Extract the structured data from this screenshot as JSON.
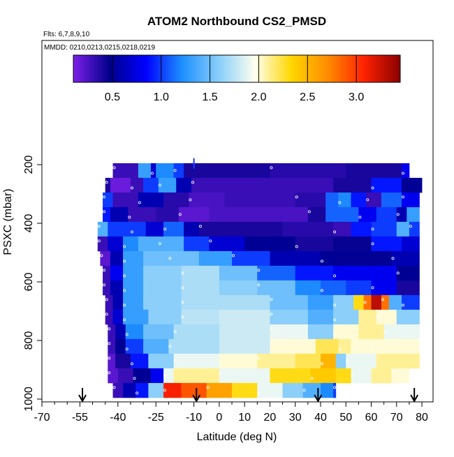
{
  "chart_data": {
    "type": "heatmap",
    "title": "ATOM2 Northbound CS2_PMSD",
    "flights_label": "Flts: 6,7,8,9,10",
    "dates_label": "MMDD: 0210,0213,0215,0218,0219",
    "xlabel": "Latitude (deg N)",
    "ylabel": "PSXC (mbar)",
    "xlim": [
      -70,
      85
    ],
    "ylim": [
      1010,
      100
    ],
    "y_reversed": true,
    "x_ticks": [
      -70,
      -55,
      -40,
      -25,
      -10,
      0,
      10,
      20,
      30,
      40,
      50,
      60,
      70,
      80
    ],
    "x_tick_labels": [
      "-70",
      "-55",
      "-40",
      "-25",
      "-10",
      "0",
      "10",
      "20",
      "30",
      "40",
      "50",
      "60",
      "70",
      "80"
    ],
    "x_minor_ticks": [
      -65,
      -60,
      -50,
      -45,
      -35,
      -30,
      -20,
      -15,
      -5,
      5,
      15,
      25,
      35,
      45,
      55,
      65,
      75
    ],
    "y_ticks": [
      200,
      400,
      600,
      800,
      1000
    ],
    "y_tick_labels": [
      "200",
      "400",
      "600",
      "800",
      "1000"
    ],
    "colorbar": {
      "range": [
        0.1,
        3.45
      ],
      "ticks": [
        0.5,
        1.0,
        1.5,
        2.0,
        2.5,
        3.0
      ],
      "tick_labels": [
        "0.5",
        "1.0",
        "1.5",
        "2.0",
        "2.5",
        "3.0"
      ],
      "colors": [
        "#7b1fe8",
        "#00008b",
        "#0000ff",
        "#1e90ff",
        "#87cefa",
        "#fffff0",
        "#ffd700",
        "#ff8c00",
        "#ff2200",
        "#8b0000"
      ]
    },
    "arrows_latitude": [
      -54,
      -9,
      39,
      77
    ],
    "series_label": "CS2_PMSD",
    "grid": false,
    "pressure_bins": [
      220,
      270,
      320,
      370,
      420,
      470,
      520,
      570,
      620,
      670,
      720,
      770,
      820,
      870,
      920,
      970
    ],
    "cells": [
      {
        "p": 220,
        "segments": [
          [
            -42,
            -32,
            0.3
          ],
          [
            -32,
            -27,
            1.3
          ],
          [
            -27,
            -25,
            0.7
          ],
          [
            -25,
            -18,
            1.2
          ],
          [
            -18,
            -14,
            1.0
          ],
          [
            -14,
            20,
            0.4
          ],
          [
            20,
            50,
            0.35
          ],
          [
            50,
            72,
            0.4
          ],
          [
            72,
            75,
            0.8
          ]
        ]
      },
      {
        "p": 270,
        "segments": [
          [
            -45,
            -43,
            0.4
          ],
          [
            -43,
            -35,
            0.15
          ],
          [
            -35,
            -30,
            0.3
          ],
          [
            -30,
            -24,
            1.0
          ],
          [
            -24,
            -17,
            1.3
          ],
          [
            -17,
            -11,
            0.6
          ],
          [
            -11,
            45,
            0.3
          ],
          [
            45,
            60,
            0.4
          ],
          [
            60,
            72,
            0.9
          ],
          [
            72,
            80,
            0.5
          ]
        ]
      },
      {
        "p": 320,
        "segments": [
          [
            -46,
            -42,
            1.0
          ],
          [
            -42,
            -32,
            0.3
          ],
          [
            -32,
            -22,
            0.6
          ],
          [
            -22,
            -12,
            0.35
          ],
          [
            -12,
            2,
            0.25
          ],
          [
            2,
            30,
            0.3
          ],
          [
            30,
            42,
            0.35
          ],
          [
            42,
            47,
            1.1
          ],
          [
            47,
            52,
            1.2
          ],
          [
            52,
            58,
            0.9
          ],
          [
            58,
            64,
            0.3
          ],
          [
            64,
            72,
            1.1
          ],
          [
            72,
            79,
            0.8
          ]
        ]
      },
      {
        "p": 370,
        "segments": [
          [
            -46,
            -43,
            0.9
          ],
          [
            -43,
            -36,
            0.6
          ],
          [
            -36,
            -25,
            0.3
          ],
          [
            -25,
            -16,
            0.35
          ],
          [
            -16,
            -4,
            0.2
          ],
          [
            -4,
            35,
            0.25
          ],
          [
            35,
            42,
            0.4
          ],
          [
            42,
            55,
            1.1
          ],
          [
            55,
            62,
            0.8
          ],
          [
            62,
            70,
            1.0
          ],
          [
            70,
            74,
            0.6
          ],
          [
            74,
            79,
            1.3
          ]
        ]
      },
      {
        "p": 420,
        "segments": [
          [
            -48,
            -44,
            1.4
          ],
          [
            -44,
            -35,
            1.0
          ],
          [
            -35,
            -29,
            1.0
          ],
          [
            -29,
            -22,
            0.7
          ],
          [
            -22,
            -14,
            1.1
          ],
          [
            -14,
            -8,
            0.6
          ],
          [
            -8,
            25,
            0.4
          ],
          [
            25,
            45,
            0.35
          ],
          [
            45,
            52,
            0.3
          ],
          [
            52,
            60,
            0.9
          ],
          [
            60,
            70,
            1.0
          ],
          [
            70,
            75,
            1.4
          ],
          [
            75,
            79,
            1.0
          ]
        ]
      },
      {
        "p": 470,
        "segments": [
          [
            -48,
            -44,
            0.3
          ],
          [
            -44,
            -38,
            0.7
          ],
          [
            -38,
            -32,
            1.2
          ],
          [
            -32,
            -24,
            1.4
          ],
          [
            -24,
            -14,
            1.4
          ],
          [
            -14,
            -4,
            1.0
          ],
          [
            -4,
            10,
            0.7
          ],
          [
            10,
            30,
            0.5
          ],
          [
            30,
            45,
            0.4
          ],
          [
            45,
            60,
            0.45
          ],
          [
            60,
            72,
            0.9
          ],
          [
            72,
            79,
            0.7
          ]
        ]
      },
      {
        "p": 520,
        "segments": [
          [
            -47,
            -43,
            0.2
          ],
          [
            -43,
            -38,
            0.6
          ],
          [
            -38,
            -30,
            1.3
          ],
          [
            -30,
            -20,
            1.5
          ],
          [
            -20,
            -8,
            1.5
          ],
          [
            -8,
            5,
            1.3
          ],
          [
            5,
            20,
            1.0
          ],
          [
            20,
            40,
            0.6
          ],
          [
            40,
            55,
            0.5
          ],
          [
            55,
            68,
            0.5
          ],
          [
            68,
            79,
            0.6
          ]
        ]
      },
      {
        "p": 570,
        "segments": [
          [
            -46,
            -43,
            0.3
          ],
          [
            -43,
            -38,
            0.8
          ],
          [
            -38,
            -30,
            1.3
          ],
          [
            -30,
            -15,
            1.6
          ],
          [
            -15,
            0,
            1.7
          ],
          [
            0,
            15,
            1.5
          ],
          [
            15,
            30,
            1.1
          ],
          [
            30,
            45,
            0.9
          ],
          [
            45,
            60,
            0.8
          ],
          [
            60,
            70,
            0.8
          ],
          [
            70,
            79,
            0.5
          ]
        ]
      },
      {
        "p": 620,
        "segments": [
          [
            -46,
            -43,
            0.3
          ],
          [
            -43,
            -38,
            0.6
          ],
          [
            -38,
            -30,
            1.3
          ],
          [
            -30,
            -15,
            1.6
          ],
          [
            -15,
            0,
            1.7
          ],
          [
            0,
            15,
            1.6
          ],
          [
            15,
            30,
            1.5
          ],
          [
            30,
            40,
            1.2
          ],
          [
            40,
            50,
            1.1
          ],
          [
            50,
            60,
            1.0
          ],
          [
            60,
            70,
            0.8
          ],
          [
            70,
            79,
            0.4
          ]
        ]
      },
      {
        "p": 670,
        "segments": [
          [
            -45,
            -42,
            0.3
          ],
          [
            -42,
            -38,
            0.6
          ],
          [
            -38,
            -30,
            1.3
          ],
          [
            -30,
            -15,
            1.6
          ],
          [
            -15,
            0,
            1.7
          ],
          [
            0,
            20,
            1.7
          ],
          [
            20,
            35,
            1.5
          ],
          [
            35,
            45,
            1.3
          ],
          [
            45,
            53,
            1.6
          ],
          [
            53,
            57,
            2.3
          ],
          [
            57,
            60,
            2.8
          ],
          [
            60,
            64,
            3.3
          ],
          [
            64,
            67,
            2.8
          ],
          [
            67,
            72,
            1.4
          ],
          [
            72,
            79,
            1.0
          ]
        ]
      },
      {
        "p": 720,
        "segments": [
          [
            -45,
            -42,
            0.3
          ],
          [
            -42,
            -38,
            0.7
          ],
          [
            -38,
            -28,
            1.3
          ],
          [
            -28,
            -15,
            1.6
          ],
          [
            -15,
            0,
            1.75
          ],
          [
            0,
            20,
            1.8
          ],
          [
            20,
            35,
            1.6
          ],
          [
            35,
            45,
            1.4
          ],
          [
            45,
            55,
            1.6
          ],
          [
            55,
            62,
            2.1
          ],
          [
            62,
            70,
            2.0
          ],
          [
            70,
            79,
            1.6
          ]
        ]
      },
      {
        "p": 770,
        "segments": [
          [
            -44,
            -41,
            0.3
          ],
          [
            -41,
            -37,
            0.6
          ],
          [
            -37,
            -30,
            1.2
          ],
          [
            -30,
            -18,
            1.5
          ],
          [
            -18,
            0,
            1.7
          ],
          [
            0,
            20,
            1.8
          ],
          [
            20,
            35,
            1.9
          ],
          [
            35,
            45,
            1.6
          ],
          [
            45,
            55,
            2.0
          ],
          [
            55,
            65,
            2.1
          ],
          [
            65,
            79,
            1.9
          ]
        ]
      },
      {
        "p": 820,
        "segments": [
          [
            -44,
            -41,
            0.3
          ],
          [
            -41,
            -37,
            0.5
          ],
          [
            -37,
            -30,
            1.0
          ],
          [
            -30,
            -20,
            1.4
          ],
          [
            -20,
            0,
            1.7
          ],
          [
            0,
            20,
            1.8
          ],
          [
            20,
            38,
            2.0
          ],
          [
            38,
            47,
            2.2
          ],
          [
            47,
            52,
            2.1
          ],
          [
            52,
            60,
            2.0
          ],
          [
            60,
            79,
            2.0
          ]
        ]
      },
      {
        "p": 870,
        "segments": [
          [
            -44,
            -41,
            0.2
          ],
          [
            -41,
            -35,
            0.4
          ],
          [
            -35,
            -28,
            0.9
          ],
          [
            -28,
            -18,
            1.6
          ],
          [
            -18,
            0,
            1.9
          ],
          [
            0,
            15,
            2.0
          ],
          [
            15,
            30,
            2.1
          ],
          [
            30,
            40,
            2.2
          ],
          [
            40,
            46,
            2.5
          ],
          [
            46,
            50,
            1.6
          ],
          [
            50,
            62,
            1.9
          ],
          [
            62,
            79,
            2.1
          ]
        ]
      },
      {
        "p": 920,
        "segments": [
          [
            -44,
            -40,
            0.2
          ],
          [
            -40,
            -34,
            0.3
          ],
          [
            -34,
            -27,
            0.5
          ],
          [
            -27,
            -22,
            0.8
          ],
          [
            -22,
            -18,
            1.9
          ],
          [
            -18,
            0,
            2.1
          ],
          [
            0,
            20,
            1.9
          ],
          [
            20,
            36,
            2.3
          ],
          [
            36,
            46,
            2.4
          ],
          [
            46,
            52,
            2.3
          ],
          [
            52,
            60,
            1.9
          ],
          [
            60,
            68,
            2.1
          ],
          [
            68,
            75,
            2.0
          ]
        ]
      },
      {
        "p": 970,
        "segments": [
          [
            -42,
            -38,
            0.3
          ],
          [
            -38,
            -33,
            0.6
          ],
          [
            -33,
            -28,
            0.9
          ],
          [
            -28,
            -22,
            1.6
          ],
          [
            -22,
            -15,
            3.1
          ],
          [
            -15,
            -5,
            2.9
          ],
          [
            -5,
            5,
            2.6
          ],
          [
            5,
            15,
            2.3
          ],
          [
            15,
            25,
            1.9
          ],
          [
            25,
            33,
            1.6
          ],
          [
            33,
            40,
            1.4
          ],
          [
            40,
            45,
            1.2
          ],
          [
            45,
            46,
            1.0
          ]
        ]
      }
    ],
    "fringe_ticks": [
      {
        "x": -10,
        "p": 178
      },
      {
        "x": -10,
        "p": 190
      }
    ]
  }
}
